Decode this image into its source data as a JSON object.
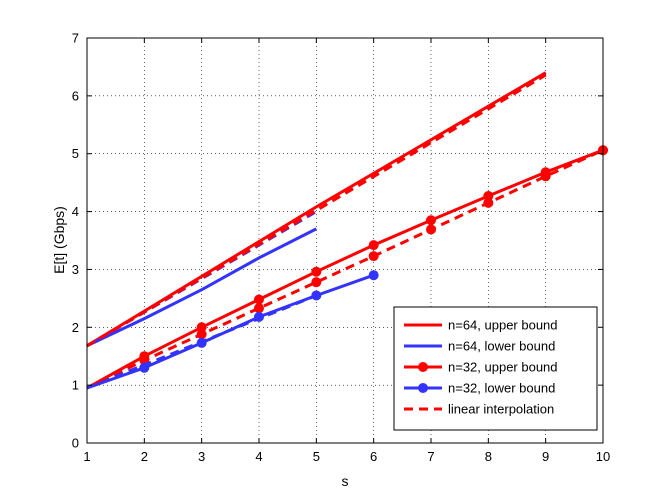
{
  "chart_data": {
    "type": "line",
    "title": "",
    "xlabel": "s",
    "ylabel": "E[t] (Gbps)",
    "xlim": [
      1,
      10
    ],
    "ylim": [
      0,
      7
    ],
    "xticks": [
      1,
      2,
      3,
      4,
      5,
      6,
      7,
      8,
      9,
      10
    ],
    "yticks": [
      0,
      1,
      2,
      3,
      4,
      5,
      6,
      7
    ],
    "grid": true,
    "grid_style": "dotted",
    "legend_position": "bottom-right",
    "series": [
      {
        "name": "n=64, upper bound",
        "color": "#ff0000",
        "style": "solid",
        "markers": false,
        "x": [
          1,
          5,
          9
        ],
        "y": [
          1.68,
          4.08,
          6.4
        ]
      },
      {
        "name": "n=64, lower bound",
        "color": "#3333ff",
        "style": "solid",
        "markers": false,
        "x": [
          1,
          2,
          3,
          4,
          5
        ],
        "y": [
          1.68,
          2.15,
          2.65,
          3.2,
          3.7
        ]
      },
      {
        "name": "n=32, upper bound",
        "color": "#ff0000",
        "style": "solid",
        "markers": true,
        "x": [
          1,
          2,
          3,
          4,
          5,
          6,
          7,
          8,
          9,
          10
        ],
        "y": [
          0.95,
          1.5,
          2.0,
          2.48,
          2.96,
          3.42,
          3.85,
          4.27,
          4.68,
          5.06
        ]
      },
      {
        "name": "n=32, lower bound",
        "color": "#3333ff",
        "style": "solid",
        "markers": true,
        "x": [
          1,
          2,
          3,
          4,
          5,
          6
        ],
        "y": [
          0.95,
          1.3,
          1.73,
          2.18,
          2.55,
          2.9
        ]
      },
      {
        "name": "linear interpolation",
        "color": "#ff0000",
        "style": "dashed",
        "markers": false,
        "x": [
          1,
          9
        ],
        "y": [
          1.68,
          6.36
        ]
      }
    ],
    "extra_lines": [
      {
        "legend": false,
        "color": "#3333ff",
        "style": "dashed",
        "markers": false,
        "x": [
          1,
          5
        ],
        "y": [
          1.68,
          4.0
        ]
      },
      {
        "legend": false,
        "color": "#ff0000",
        "style": "dashed",
        "markers": true,
        "x": [
          1,
          2,
          3,
          4,
          5,
          6,
          7,
          8,
          9,
          10
        ],
        "y": [
          0.95,
          1.43,
          1.88,
          2.33,
          2.78,
          3.23,
          3.69,
          4.15,
          4.61,
          5.06
        ]
      },
      {
        "legend": false,
        "color": "#3333ff",
        "style": "dashed",
        "markers": false,
        "x": [
          1,
          2,
          3,
          4,
          5
        ],
        "y": [
          0.95,
          1.35,
          1.75,
          2.15,
          2.55
        ]
      }
    ]
  }
}
